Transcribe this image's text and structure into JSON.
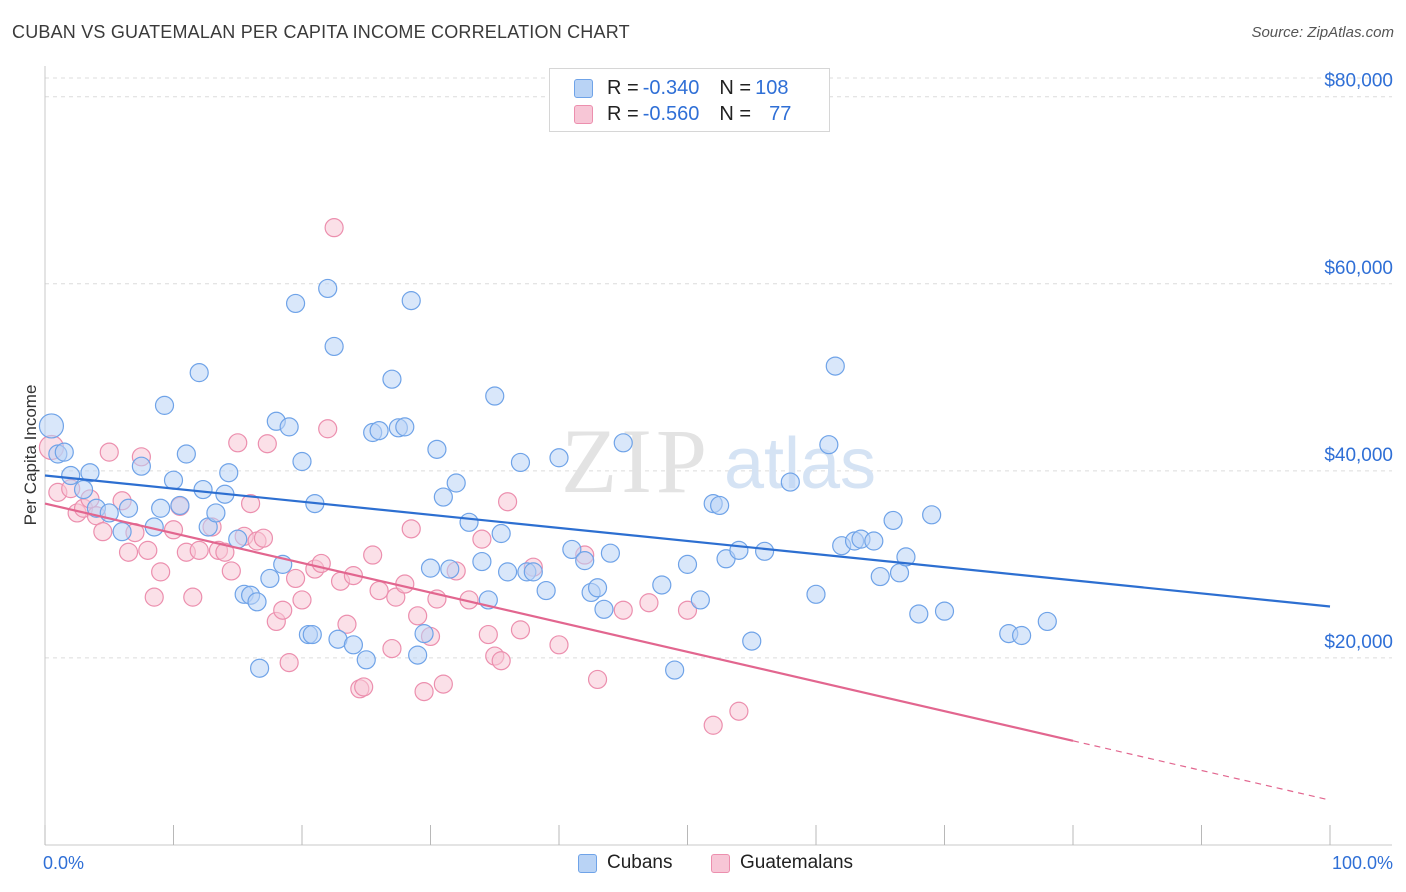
{
  "title": "CUBAN VS GUATEMALAN PER CAPITA INCOME CORRELATION CHART",
  "source": "Source: ZipAtlas.com",
  "watermark": {
    "zip": "ZIP",
    "atlas": "atlas"
  },
  "legend": {
    "rows": [
      {
        "r_label": "R = ",
        "r_value": "-0.340",
        "n_label": "N = ",
        "n_value": "108"
      },
      {
        "r_label": "R = ",
        "r_value": "-0.560",
        "n_label": "N = ",
        "n_value": "77"
      }
    ]
  },
  "colors": {
    "blue": "#6fa3e8",
    "blue_fill": "#b9d3f5",
    "blue_line": "#2d6fd1",
    "pink": "#ec8fae",
    "pink_fill": "#f7c6d6",
    "pink_line": "#e2668f",
    "axis_label": "#2f6fd6",
    "grid": "#dcdcdc"
  },
  "chart_data": {
    "type": "scatter",
    "title": "CUBAN VS GUATEMALAN PER CAPITA INCOME CORRELATION CHART",
    "xlabel": "",
    "ylabel": "Per Capita Income",
    "x_tick_labels": [
      "0.0%",
      "100.0%"
    ],
    "y_ticks": [
      20000,
      40000,
      60000,
      80000
    ],
    "y_tick_labels": [
      "$20,000",
      "$40,000",
      "$60,000",
      "$80,000"
    ],
    "xlim": [
      0,
      100
    ],
    "ylim": [
      0,
      82000
    ],
    "grid": true,
    "legend_placement": "bottom",
    "series": [
      {
        "name": "Cubans",
        "color": "#6fa3e8",
        "r": -0.34,
        "n": 108,
        "trend": {
          "x0": 0,
          "y0": 39500,
          "x1": 100,
          "y1": 25500,
          "dashed_from": null
        },
        "points": [
          [
            0.5,
            44800
          ],
          [
            1,
            41800
          ],
          [
            1.5,
            42000
          ],
          [
            2,
            39500
          ],
          [
            3,
            38000
          ],
          [
            3.5,
            39800
          ],
          [
            4,
            36000
          ],
          [
            5,
            35500
          ],
          [
            6,
            33500
          ],
          [
            6.5,
            36000
          ],
          [
            7.5,
            40500
          ],
          [
            8.5,
            34000
          ],
          [
            9,
            36000
          ],
          [
            9.3,
            47000
          ],
          [
            10,
            39000
          ],
          [
            10.5,
            36300
          ],
          [
            11,
            41800
          ],
          [
            12,
            50500
          ],
          [
            12.3,
            38000
          ],
          [
            12.7,
            34000
          ],
          [
            13.3,
            35500
          ],
          [
            14,
            37500
          ],
          [
            14.3,
            39800
          ],
          [
            15,
            32700
          ],
          [
            15.5,
            26800
          ],
          [
            16,
            26700
          ],
          [
            16.5,
            26000
          ],
          [
            16.7,
            18900
          ],
          [
            17.5,
            28500
          ],
          [
            18,
            45300
          ],
          [
            18.5,
            30000
          ],
          [
            19,
            44700
          ],
          [
            19.5,
            57900
          ],
          [
            20,
            41000
          ],
          [
            20.5,
            22500
          ],
          [
            20.8,
            22500
          ],
          [
            21,
            36500
          ],
          [
            22,
            59500
          ],
          [
            22.5,
            53300
          ],
          [
            22.8,
            22000
          ],
          [
            24,
            21400
          ],
          [
            25,
            19800
          ],
          [
            25.5,
            44100
          ],
          [
            26,
            44300
          ],
          [
            27,
            49800
          ],
          [
            27.5,
            44600
          ],
          [
            28,
            44700
          ],
          [
            28.5,
            58200
          ],
          [
            29,
            20300
          ],
          [
            29.5,
            22600
          ],
          [
            30,
            29600
          ],
          [
            30.5,
            42300
          ],
          [
            31,
            37200
          ],
          [
            31.5,
            29500
          ],
          [
            32,
            38700
          ],
          [
            33,
            34500
          ],
          [
            34,
            30300
          ],
          [
            34.5,
            26200
          ],
          [
            35,
            48000
          ],
          [
            35.5,
            33300
          ],
          [
            36,
            29200
          ],
          [
            37,
            40900
          ],
          [
            37.5,
            29200
          ],
          [
            38,
            29200
          ],
          [
            39,
            27200
          ],
          [
            40,
            41400
          ],
          [
            41,
            31600
          ],
          [
            42,
            30400
          ],
          [
            42.5,
            27000
          ],
          [
            43,
            27500
          ],
          [
            43.5,
            25200
          ],
          [
            44,
            31200
          ],
          [
            45,
            43000
          ],
          [
            48,
            27800
          ],
          [
            49,
            18700
          ],
          [
            50,
            30000
          ],
          [
            51,
            26200
          ],
          [
            52,
            36500
          ],
          [
            52.5,
            36300
          ],
          [
            53,
            30600
          ],
          [
            54,
            31500
          ],
          [
            55,
            21800
          ],
          [
            56,
            31400
          ],
          [
            58,
            38800
          ],
          [
            60,
            26800
          ],
          [
            61,
            42800
          ],
          [
            61.5,
            51200
          ],
          [
            62,
            32000
          ],
          [
            63,
            32500
          ],
          [
            63.5,
            32700
          ],
          [
            64.5,
            32500
          ],
          [
            65,
            28700
          ],
          [
            66,
            34700
          ],
          [
            66.5,
            29100
          ],
          [
            67,
            30800
          ],
          [
            68,
            24700
          ],
          [
            69,
            35300
          ],
          [
            70,
            25000
          ],
          [
            75,
            22600
          ],
          [
            76,
            22400
          ],
          [
            78,
            23900
          ]
        ]
      },
      {
        "name": "Guatemalans",
        "color": "#ec8fae",
        "r": -0.56,
        "n": 77,
        "trend": {
          "x0": 0,
          "y0": 36500,
          "x1": 100,
          "y1": 4800,
          "dashed_from": 80
        },
        "points": [
          [
            0.5,
            42500
          ],
          [
            1,
            37700
          ],
          [
            2,
            38100
          ],
          [
            2.5,
            35500
          ],
          [
            3,
            36000
          ],
          [
            3.5,
            37000
          ],
          [
            4,
            35200
          ],
          [
            4.5,
            33500
          ],
          [
            5,
            42000
          ],
          [
            6,
            36800
          ],
          [
            6.5,
            31300
          ],
          [
            7,
            33400
          ],
          [
            7.5,
            41500
          ],
          [
            8,
            31500
          ],
          [
            8.5,
            26500
          ],
          [
            9,
            29200
          ],
          [
            10,
            33700
          ],
          [
            10.5,
            36200
          ],
          [
            11,
            31300
          ],
          [
            11.5,
            26500
          ],
          [
            12,
            31500
          ],
          [
            13,
            34000
          ],
          [
            13.5,
            31500
          ],
          [
            14,
            31300
          ],
          [
            14.5,
            29300
          ],
          [
            15,
            43000
          ],
          [
            15.5,
            33000
          ],
          [
            16,
            36500
          ],
          [
            16.5,
            32500
          ],
          [
            17,
            32800
          ],
          [
            17.3,
            42900
          ],
          [
            18,
            23900
          ],
          [
            18.5,
            25100
          ],
          [
            19,
            19500
          ],
          [
            19.5,
            28500
          ],
          [
            20,
            26200
          ],
          [
            21,
            29500
          ],
          [
            21.5,
            30100
          ],
          [
            22,
            44500
          ],
          [
            22.5,
            66000
          ],
          [
            23,
            28200
          ],
          [
            23.5,
            23600
          ],
          [
            24,
            28800
          ],
          [
            24.5,
            16700
          ],
          [
            24.8,
            16900
          ],
          [
            25.5,
            31000
          ],
          [
            26,
            27200
          ],
          [
            27,
            21000
          ],
          [
            27.3,
            26500
          ],
          [
            28,
            27900
          ],
          [
            28.5,
            33800
          ],
          [
            29,
            24500
          ],
          [
            29.5,
            16400
          ],
          [
            30,
            22300
          ],
          [
            30.5,
            26300
          ],
          [
            31,
            17200
          ],
          [
            32,
            29300
          ],
          [
            33,
            26200
          ],
          [
            34,
            32700
          ],
          [
            34.5,
            22500
          ],
          [
            35,
            20200
          ],
          [
            35.5,
            19700
          ],
          [
            36,
            36700
          ],
          [
            37,
            23000
          ],
          [
            38,
            29700
          ],
          [
            40,
            21400
          ],
          [
            42,
            31000
          ],
          [
            43,
            17700
          ],
          [
            45,
            25100
          ],
          [
            47,
            25900
          ],
          [
            50,
            25100
          ],
          [
            52,
            12800
          ],
          [
            54,
            14300
          ]
        ]
      }
    ]
  }
}
